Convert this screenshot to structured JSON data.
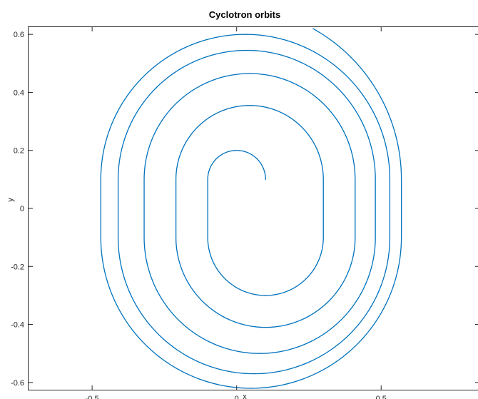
{
  "chart_data": {
    "type": "line",
    "title": "Cyclotron orbits",
    "xlabel": "x",
    "ylabel": "y",
    "xlim": [
      -0.72,
      0.84
    ],
    "ylim": [
      -0.625,
      0.625
    ],
    "xticks": [
      -0.5,
      0,
      0.5
    ],
    "xtick_labels": [
      "-0.5",
      "0",
      "0.5"
    ],
    "yticks": [
      -0.6,
      -0.4,
      -0.2,
      0,
      0.2,
      0.4,
      0.6
    ],
    "ytick_labels": [
      "-0.6",
      "-0.4",
      "-0.2",
      "0",
      "0.2",
      "0.4",
      "0.6"
    ],
    "grid": false,
    "series": [
      {
        "color": "#0072bd",
        "gap_y": [
          -0.1,
          0.1
        ],
        "dee_centers_y": [
          0.1,
          -0.1
        ],
        "start": [
          0.1,
          0.1
        ],
        "semicircle_radii": [
          0.1,
          0.2,
          0.255,
          0.31,
          0.365,
          0.4,
          0.445,
          0.47,
          0.5,
          0.52
        ],
        "end": [
          0.25,
          0.594
        ]
      }
    ]
  }
}
